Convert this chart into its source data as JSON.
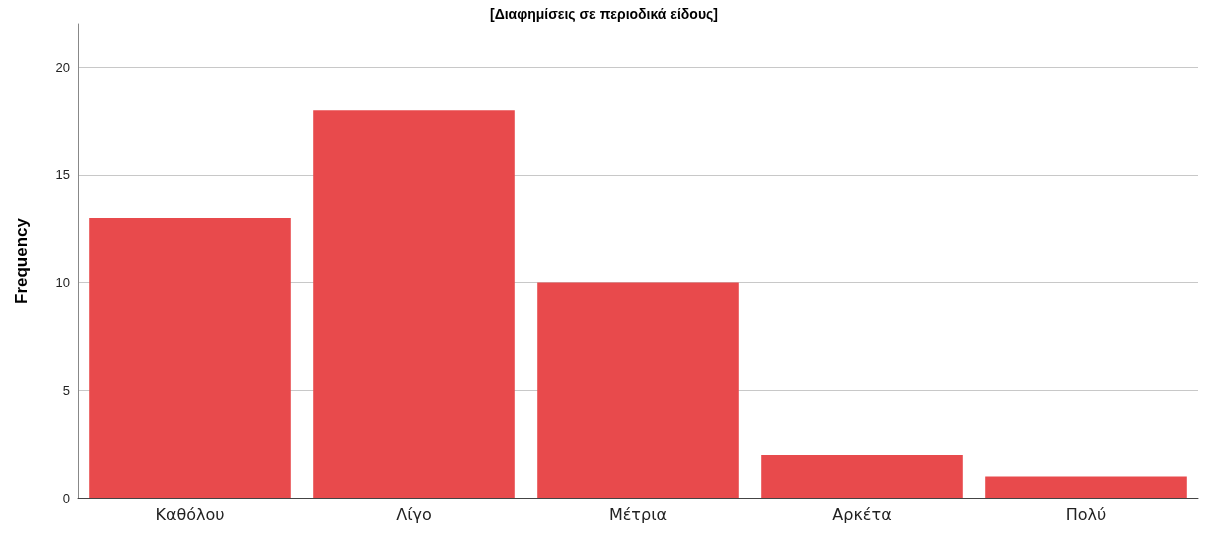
{
  "chart_data": {
    "type": "bar",
    "title": "[Διαφημίσεις σε περιοδικά είδους]",
    "ylabel": "Frequency",
    "categories": [
      "Καθόλου",
      "Λίγο",
      "Μέτρια",
      "Αρκέτα",
      "Πολύ"
    ],
    "values": [
      13,
      18,
      10,
      2,
      1
    ],
    "color": "#e84a4c",
    "ylim": [
      0,
      22
    ],
    "yticks": [
      0,
      5,
      10,
      15,
      20
    ],
    "grid": "y"
  }
}
